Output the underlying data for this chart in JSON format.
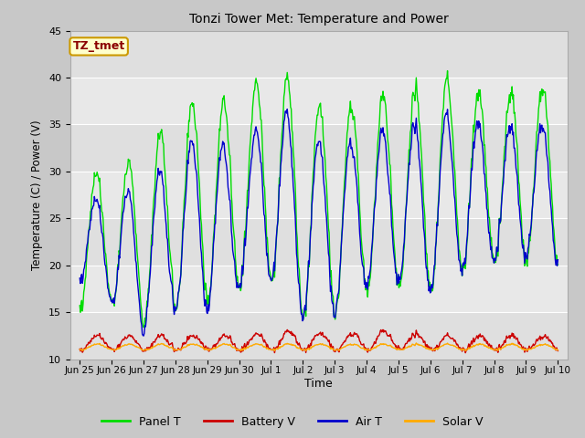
{
  "title": "Tonzi Tower Met: Temperature and Power",
  "xlabel": "Time",
  "ylabel": "Temperature (C) / Power (V)",
  "ylim": [
    10,
    45
  ],
  "yticks": [
    10,
    15,
    20,
    25,
    30,
    35,
    40,
    45
  ],
  "annotation_text": "TZ_tmet",
  "annotation_color": "#8b0000",
  "annotation_bg": "#ffffcc",
  "annotation_edge": "#cc9900",
  "legend_labels": [
    "Panel T",
    "Battery V",
    "Air T",
    "Solar V"
  ],
  "line_colors": {
    "panel_t": "#00dd00",
    "battery_v": "#cc0000",
    "air_t": "#0000cc",
    "solar_v": "#ffaa00"
  },
  "legend_colors": [
    "#00dd00",
    "#cc0000",
    "#0000cc",
    "#ffaa00"
  ],
  "fig_facecolor": "#c8c8c8",
  "ax_facecolor": "#e8e8e8",
  "grid_color": "#ffffff",
  "xtick_labels": [
    "Jun 25",
    "Jun 26",
    "Jun 27",
    "Jun 28",
    "Jun 29",
    "Jun 30",
    "Jul 1",
    "Jul 2",
    "Jul 3",
    "Jul 4",
    "Jul 5",
    "Jul 6",
    "Jul 7",
    "Jul 8",
    "Jul 9",
    "Jul 10"
  ],
  "xtick_positions": [
    0,
    1,
    2,
    3,
    4,
    5,
    6,
    7,
    8,
    9,
    10,
    11,
    12,
    13,
    14,
    15
  ],
  "panel_peaks": [
    30,
    29.5,
    32.5,
    35.5,
    39,
    36,
    42.5,
    37,
    37,
    37.5,
    38.5,
    39.5,
    40,
    37,
    39.5,
    39
  ],
  "panel_troughs": [
    15.5,
    16,
    14,
    15.5,
    16,
    18,
    18.5,
    14.5,
    15,
    17.5,
    17.5,
    17,
    19.5,
    20.5,
    20.5,
    20
  ],
  "air_peaks": [
    27,
    27,
    29,
    31,
    35.5,
    30,
    38.5,
    33.5,
    33,
    33.5,
    35,
    35.5,
    36.5,
    34,
    35.5,
    35
  ],
  "air_troughs": [
    18.5,
    16,
    13,
    15.5,
    15,
    18,
    18.5,
    14.5,
    15,
    18,
    18,
    17,
    19.5,
    20.5,
    21,
    20
  ],
  "batt_peaks": [
    12.5,
    12.5,
    12.5,
    12.5,
    12.5,
    12.5,
    12.8,
    13,
    12.5,
    13,
    13,
    12.5,
    12.5,
    12.5,
    12.5,
    12.5
  ],
  "batt_troughs": [
    11,
    11,
    11,
    11,
    11,
    11,
    11,
    11,
    11,
    11,
    11,
    11,
    11,
    11,
    11,
    11
  ],
  "solar_peaks": [
    11.6,
    11.6,
    11.6,
    11.6,
    11.6,
    11.6,
    11.6,
    11.6,
    11.6,
    11.6,
    11.6,
    11.6,
    11.6,
    11.6,
    11.6,
    11.6
  ],
  "solar_troughs": [
    11.0,
    11.0,
    11.0,
    11.0,
    11.0,
    11.0,
    11.0,
    11.0,
    11.0,
    11.0,
    11.0,
    11.0,
    11.0,
    11.0,
    11.0,
    11.0
  ]
}
